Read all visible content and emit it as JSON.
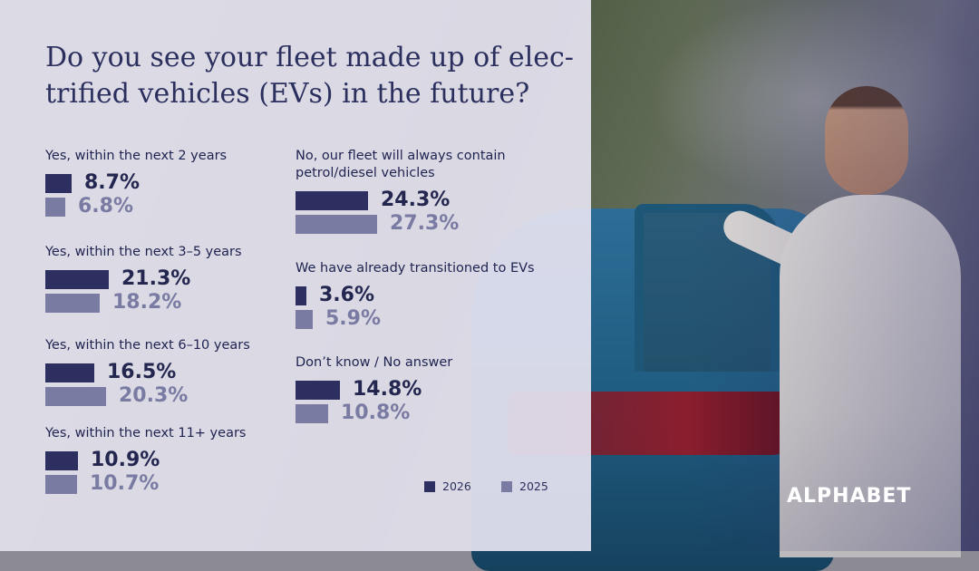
{
  "title": "Do you see your fleet made up of elec-trified vehicles (EVs) in the future?",
  "brand": "ALPHABET",
  "colors": {
    "y2026": "#2c2f5f",
    "y2025": "#7a7ba3",
    "val2026": "#23264f",
    "val2025": "#7a7ba3"
  },
  "chart_data": {
    "type": "bar",
    "orientation": "horizontal",
    "title": "Do you see your fleet made up of elec-trified vehicles (EVs) in the future?",
    "categories": [
      "Yes, within the next 2 years",
      "Yes, within the next 3–5 years",
      "Yes, within the next 6–10 years",
      "Yes, within the next 11+ years",
      "No, our fleet will always contain petrol/diesel vehicles",
      "We have already transitioned to EVs",
      "Don’t know / No answer"
    ],
    "series": [
      {
        "name": "2026",
        "values": [
          8.7,
          21.3,
          16.5,
          10.9,
          24.3,
          3.6,
          14.8
        ],
        "labels": [
          "8.7%",
          "21.3%",
          "16.5%",
          "10.9%",
          "24.3%",
          "3.6%",
          "14.8%"
        ]
      },
      {
        "name": "2025",
        "values": [
          6.8,
          18.2,
          20.3,
          10.7,
          27.3,
          5.9,
          10.8
        ],
        "labels": [
          "6.8%",
          "18.2%",
          "20.3%",
          "10.7%",
          "27.3%",
          "5.9%",
          "10.8%"
        ]
      }
    ],
    "legend": [
      "2026",
      "2025"
    ],
    "legend_position": "bottom-right"
  }
}
